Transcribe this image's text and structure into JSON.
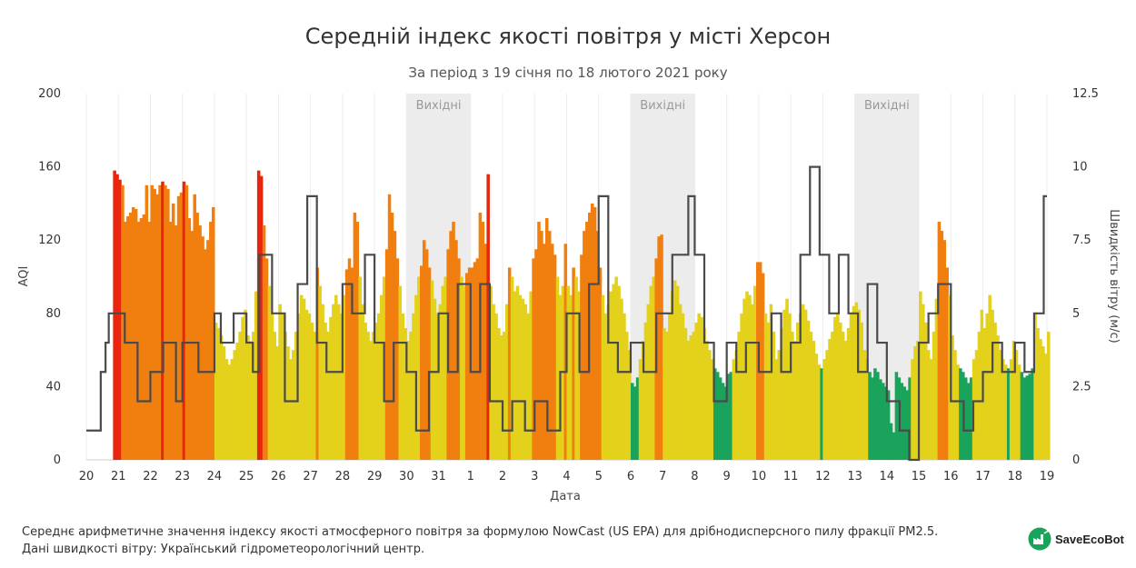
{
  "chart_data": {
    "type": "bar",
    "title": "Середній індекс якості повітря у місті Херсон",
    "subtitle": "За період з 19 січня по 18 лютого 2021 року",
    "xlabel": "Дата",
    "ylabel": "AQI",
    "y2label": "Швидкість вітру (м/с)",
    "ylim": [
      0,
      200
    ],
    "y2lim": [
      0,
      12.5
    ],
    "yticks": [
      "0",
      "40",
      "80",
      "120",
      "160",
      "200"
    ],
    "y2ticks": [
      "0",
      "2.5",
      "5",
      "7.5",
      "10",
      "12.5"
    ],
    "xticks": [
      "20",
      "21",
      "22",
      "23",
      "24",
      "25",
      "26",
      "27",
      "28",
      "29",
      "30",
      "31",
      "1",
      "2",
      "3",
      "4",
      "5",
      "6",
      "7",
      "8",
      "9",
      "10",
      "11",
      "12",
      "13",
      "14",
      "15",
      "16",
      "17",
      "18",
      "19"
    ],
    "weekend_label": "Вихідні",
    "weekends": [
      [
        30,
        31
      ],
      [
        6,
        7
      ],
      [
        13,
        14
      ]
    ],
    "aqi_colors": {
      "good": "#1aa35a",
      "moderate": "#e3d11b",
      "sensitive": "#f07f0f",
      "unhealthy": "#e8260f"
    },
    "aqi_day_profile": [
      {
        "date": "20",
        "values": [
          0,
          0,
          0,
          0,
          0,
          0,
          0,
          0,
          0,
          0,
          158,
          156
        ]
      },
      {
        "date": "21",
        "values": [
          153,
          150,
          130,
          133,
          135,
          138,
          137,
          130,
          132,
          134,
          150,
          130
        ]
      },
      {
        "date": "22",
        "values": [
          150,
          148,
          145,
          150,
          152,
          150,
          148,
          130,
          140,
          128,
          144,
          146
        ]
      },
      {
        "date": "23",
        "values": [
          152,
          150,
          132,
          125,
          145,
          135,
          128,
          122,
          115,
          120,
          130,
          138
        ]
      },
      {
        "date": "24",
        "values": [
          75,
          72,
          68,
          62,
          55,
          52,
          55,
          60,
          64,
          70,
          78,
          82
        ]
      },
      {
        "date": "25",
        "values": [
          68,
          65,
          70,
          92,
          158,
          155,
          128,
          110,
          95,
          80,
          70,
          62
        ]
      },
      {
        "date": "26",
        "values": [
          85,
          80,
          70,
          62,
          55,
          60,
          70,
          80,
          90,
          88,
          82,
          80
        ]
      },
      {
        "date": "27",
        "values": [
          75,
          70,
          105,
          95,
          85,
          75,
          70,
          78,
          85,
          90,
          85,
          80
        ]
      },
      {
        "date": "28",
        "values": [
          90,
          104,
          110,
          105,
          135,
          130,
          100,
          85,
          75,
          70,
          65,
          70
        ]
      },
      {
        "date": "29",
        "values": [
          75,
          80,
          90,
          100,
          115,
          145,
          135,
          125,
          110,
          95,
          80,
          72
        ]
      },
      {
        "date": "30",
        "values": [
          65,
          70,
          80,
          90,
          100,
          106,
          120,
          115,
          105,
          98,
          88,
          80
        ]
      },
      {
        "date": "31",
        "values": [
          85,
          95,
          100,
          115,
          125,
          130,
          120,
          110,
          100,
          95,
          102,
          105
        ]
      },
      {
        "date": "1",
        "values": [
          105,
          108,
          110,
          135,
          130,
          118,
          156,
          95,
          85,
          80,
          72,
          68
        ]
      },
      {
        "date": "2",
        "values": [
          70,
          85,
          105,
          100,
          92,
          95,
          90,
          88,
          85,
          80,
          92,
          110
        ]
      },
      {
        "date": "3",
        "values": [
          115,
          130,
          125,
          118,
          132,
          125,
          118,
          112,
          100,
          90,
          95,
          118
        ]
      },
      {
        "date": "4",
        "values": [
          95,
          90,
          105,
          100,
          92,
          112,
          125,
          130,
          135,
          140,
          138,
          125
        ]
      },
      {
        "date": "5",
        "values": [
          105,
          90,
          80,
          85,
          92,
          96,
          100,
          95,
          88,
          80,
          70,
          60
        ]
      },
      {
        "date": "6",
        "values": [
          42,
          40,
          45,
          55,
          65,
          75,
          85,
          95,
          100,
          110,
          122,
          123
        ]
      },
      {
        "date": "7",
        "values": [
          72,
          70,
          80,
          92,
          98,
          95,
          85,
          80,
          72,
          65,
          68,
          70
        ]
      },
      {
        "date": "8",
        "values": [
          75,
          80,
          78,
          72,
          65,
          60,
          55,
          50,
          48,
          45,
          42,
          40
        ]
      },
      {
        "date": "9",
        "values": [
          47,
          48,
          55,
          60,
          70,
          80,
          88,
          92,
          90,
          85,
          95,
          108
        ]
      },
      {
        "date": "10",
        "values": [
          108,
          102,
          80,
          75,
          85,
          70,
          55,
          60,
          72,
          82,
          88,
          80
        ]
      },
      {
        "date": "11",
        "values": [
          70,
          65,
          75,
          80,
          85,
          82,
          76,
          70,
          65,
          58,
          52,
          50
        ]
      },
      {
        "date": "12",
        "values": [
          55,
          60,
          66,
          70,
          78,
          80,
          75,
          70,
          65,
          72,
          80,
          84
        ]
      },
      {
        "date": "13",
        "values": [
          86,
          82,
          75,
          60,
          55,
          48,
          45,
          50,
          48,
          44,
          42,
          40
        ]
      },
      {
        "date": "14",
        "values": [
          38,
          20,
          15,
          48,
          45,
          42,
          40,
          38,
          45,
          55,
          62,
          65
        ]
      },
      {
        "date": "15",
        "values": [
          92,
          85,
          75,
          60,
          55,
          70,
          88,
          130,
          125,
          120,
          105,
          90
        ]
      },
      {
        "date": "16",
        "values": [
          68,
          60,
          52,
          50,
          48,
          45,
          42,
          45,
          55,
          60,
          70,
          82
        ]
      },
      {
        "date": "17",
        "values": [
          72,
          80,
          90,
          82,
          75,
          68,
          60,
          55,
          52,
          50,
          55,
          65
        ]
      },
      {
        "date": "18",
        "values": [
          60,
          52,
          48,
          45,
          46,
          47,
          50,
          80,
          72,
          66,
          62,
          58
        ]
      },
      {
        "date": "19",
        "values": [
          70
        ]
      }
    ],
    "wind_speed": [
      {
        "x": 0.0,
        "y": 1.0
      },
      {
        "x": 0.4,
        "y": 1.0
      },
      {
        "x": 0.45,
        "y": 3.0
      },
      {
        "x": 0.6,
        "y": 4.0
      },
      {
        "x": 0.7,
        "y": 5.0
      },
      {
        "x": 1.2,
        "y": 4.0
      },
      {
        "x": 1.6,
        "y": 2.0
      },
      {
        "x": 2.0,
        "y": 3.0
      },
      {
        "x": 2.4,
        "y": 4.0
      },
      {
        "x": 2.8,
        "y": 2.0
      },
      {
        "x": 3.0,
        "y": 4.0
      },
      {
        "x": 3.5,
        "y": 3.0
      },
      {
        "x": 4.0,
        "y": 5.0
      },
      {
        "x": 4.2,
        "y": 4.0
      },
      {
        "x": 4.6,
        "y": 5.0
      },
      {
        "x": 5.0,
        "y": 4.0
      },
      {
        "x": 5.2,
        "y": 3.0
      },
      {
        "x": 5.4,
        "y": 7.0
      },
      {
        "x": 5.8,
        "y": 5.0
      },
      {
        "x": 6.2,
        "y": 2.0
      },
      {
        "x": 6.6,
        "y": 6.0
      },
      {
        "x": 6.9,
        "y": 9.0
      },
      {
        "x": 7.2,
        "y": 4.0
      },
      {
        "x": 7.5,
        "y": 3.0
      },
      {
        "x": 8.0,
        "y": 6.0
      },
      {
        "x": 8.3,
        "y": 5.0
      },
      {
        "x": 8.7,
        "y": 7.0
      },
      {
        "x": 9.0,
        "y": 4.0
      },
      {
        "x": 9.3,
        "y": 2.0
      },
      {
        "x": 9.6,
        "y": 4.0
      },
      {
        "x": 10.0,
        "y": 3.0
      },
      {
        "x": 10.3,
        "y": 1.0
      },
      {
        "x": 10.7,
        "y": 3.0
      },
      {
        "x": 11.0,
        "y": 5.0
      },
      {
        "x": 11.3,
        "y": 3.0
      },
      {
        "x": 11.6,
        "y": 6.0
      },
      {
        "x": 12.0,
        "y": 3.0
      },
      {
        "x": 12.3,
        "y": 6.0
      },
      {
        "x": 12.6,
        "y": 2.0
      },
      {
        "x": 13.0,
        "y": 1.0
      },
      {
        "x": 13.3,
        "y": 2.0
      },
      {
        "x": 13.7,
        "y": 1.0
      },
      {
        "x": 14.0,
        "y": 2.0
      },
      {
        "x": 14.4,
        "y": 1.0
      },
      {
        "x": 14.8,
        "y": 3.0
      },
      {
        "x": 15.0,
        "y": 5.0
      },
      {
        "x": 15.4,
        "y": 3.0
      },
      {
        "x": 15.7,
        "y": 6.0
      },
      {
        "x": 16.0,
        "y": 9.0
      },
      {
        "x": 16.3,
        "y": 4.0
      },
      {
        "x": 16.6,
        "y": 3.0
      },
      {
        "x": 17.0,
        "y": 4.0
      },
      {
        "x": 17.4,
        "y": 3.0
      },
      {
        "x": 17.8,
        "y": 5.0
      },
      {
        "x": 18.0,
        "y": 5.0
      },
      {
        "x": 18.3,
        "y": 7.0
      },
      {
        "x": 18.8,
        "y": 9.0
      },
      {
        "x": 19.0,
        "y": 7.0
      },
      {
        "x": 19.3,
        "y": 4.0
      },
      {
        "x": 19.6,
        "y": 2.0
      },
      {
        "x": 20.0,
        "y": 4.0
      },
      {
        "x": 20.3,
        "y": 3.0
      },
      {
        "x": 20.6,
        "y": 4.0
      },
      {
        "x": 21.0,
        "y": 3.0
      },
      {
        "x": 21.4,
        "y": 5.0
      },
      {
        "x": 21.7,
        "y": 3.0
      },
      {
        "x": 22.0,
        "y": 4.0
      },
      {
        "x": 22.3,
        "y": 7.0
      },
      {
        "x": 22.6,
        "y": 10.0
      },
      {
        "x": 22.9,
        "y": 7.0
      },
      {
        "x": 23.2,
        "y": 5.0
      },
      {
        "x": 23.5,
        "y": 7.0
      },
      {
        "x": 23.8,
        "y": 5.0
      },
      {
        "x": 24.1,
        "y": 3.0
      },
      {
        "x": 24.4,
        "y": 6.0
      },
      {
        "x": 24.7,
        "y": 4.0
      },
      {
        "x": 25.0,
        "y": 2.0
      },
      {
        "x": 25.4,
        "y": 1.0
      },
      {
        "x": 25.7,
        "y": 0.0
      },
      {
        "x": 26.0,
        "y": 4.0
      },
      {
        "x": 26.3,
        "y": 5.0
      },
      {
        "x": 26.6,
        "y": 6.0
      },
      {
        "x": 27.0,
        "y": 2.0
      },
      {
        "x": 27.4,
        "y": 1.0
      },
      {
        "x": 27.7,
        "y": 2.0
      },
      {
        "x": 28.0,
        "y": 3.0
      },
      {
        "x": 28.3,
        "y": 4.0
      },
      {
        "x": 28.6,
        "y": 3.0
      },
      {
        "x": 29.0,
        "y": 4.0
      },
      {
        "x": 29.3,
        "y": 3.0
      },
      {
        "x": 29.6,
        "y": 5.0
      },
      {
        "x": 29.9,
        "y": 9.0
      },
      {
        "x": 30.0,
        "y": 9.0
      }
    ]
  },
  "footer": {
    "note_line1": "Середнє арифметичне значення індексу якості атмосферного повітря за формулою NowCast (US EPA) для дрібнодисперсного пилу фракції PM2.5.",
    "note_line2": "Дані швидкості вітру: Український гідрометеорологічний центр.",
    "brand": "SaveEcoBot"
  }
}
